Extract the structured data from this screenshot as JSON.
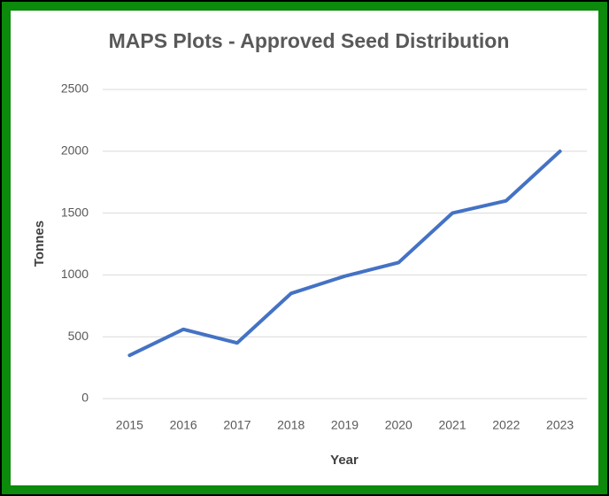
{
  "chart_data": {
    "type": "line",
    "title": "MAPS Plots - Approved Seed Distribution",
    "x_label": "Year",
    "y_label": "Tonnes",
    "categories": [
      "2015",
      "2016",
      "2017",
      "2018",
      "2019",
      "2020",
      "2021",
      "2022",
      "2023"
    ],
    "series": [
      {
        "color": "#4472c4",
        "values": [
          350,
          560,
          450,
          850,
          990,
          1100,
          1500,
          1600,
          2000
        ]
      }
    ],
    "ylim": [
      0,
      2500
    ],
    "yticks": [
      0,
      500,
      1000,
      1500,
      2000,
      2500
    ],
    "grid": true
  }
}
